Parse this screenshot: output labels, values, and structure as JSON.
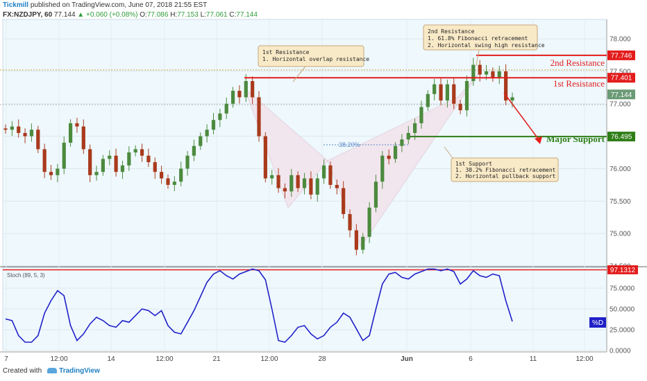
{
  "header": {
    "publisher": "Tickmill",
    "published_text": "published on TradingView.com, June 07, 2018 21:55 EST",
    "symbol": "FX:NZDJPY, 60",
    "last": "77.144",
    "change": "+0.060 (+0.08%)",
    "ohlc": [
      {
        "label": "O:",
        "value": "77.086"
      },
      {
        "label": "H:",
        "value": "77.153"
      },
      {
        "label": "L:",
        "value": "77.061"
      },
      {
        "label": "C:",
        "value": "77.144"
      }
    ]
  },
  "footer": {
    "created_with": "Created with",
    "brand": "TradingView"
  },
  "colors": {
    "resistance": "#e31c1c",
    "support": "#2e7d17",
    "stoch": "#2020c8",
    "current": "#6b9a76",
    "pane_bg": "#eef8fd",
    "up": "#4c8a3e",
    "down": "#a93a1c",
    "pattern": "#f2e6ee"
  },
  "chart_data": [
    {
      "type": "candlestick",
      "ylim": [
        74.5,
        78.3
      ],
      "yticks": [
        "78.000",
        "77.500",
        "77.000",
        "76.500",
        "76.000",
        "75.500",
        "75.000",
        "74.500"
      ],
      "ytick_values": [
        78.0,
        77.5,
        77.0,
        76.5,
        76.0,
        75.5,
        75.0,
        74.5
      ],
      "xticks": [
        "7",
        "12:00",
        "14",
        "12:00",
        "21",
        "12:00",
        "28",
        "Jun",
        "6",
        "11",
        "12:00"
      ],
      "closes": [
        76.6,
        76.65,
        76.55,
        76.5,
        76.6,
        76.3,
        75.95,
        75.9,
        76.0,
        76.4,
        76.7,
        76.65,
        76.3,
        75.9,
        75.95,
        76.15,
        76.2,
        75.95,
        76.05,
        76.25,
        76.3,
        76.2,
        76.1,
        75.95,
        75.85,
        75.75,
        75.8,
        76.0,
        76.2,
        76.35,
        76.5,
        76.6,
        76.75,
        76.85,
        77.0,
        77.2,
        77.1,
        77.35,
        77.1,
        76.5,
        75.85,
        75.9,
        75.7,
        75.65,
        75.9,
        75.7,
        75.85,
        75.6,
        75.85,
        76.05,
        75.75,
        75.7,
        75.3,
        75.05,
        74.75,
        74.95,
        75.4,
        75.8,
        76.2,
        76.15,
        76.35,
        76.45,
        76.55,
        76.7,
        76.95,
        77.15,
        77.3,
        77.05,
        77.3,
        77.0,
        76.9,
        77.35,
        77.6,
        77.45,
        77.5,
        77.4,
        77.5,
        77.05,
        77.1
      ],
      "levels": [
        {
          "label": "2nd Resistance",
          "value": "77.746",
          "y": 77.746
        },
        {
          "label": "1st Resistance",
          "value": "77.401",
          "y": 77.401
        },
        {
          "label": "Major Support",
          "value": "76.495",
          "y": 76.495
        }
      ],
      "current": {
        "value": "77.144",
        "y": 77.144
      },
      "fib_label": "38.20%",
      "annotations": [
        {
          "title": "1st Resistance",
          "lines": [
            "1. Horizontal overlap resistance"
          ]
        },
        {
          "title": "2nd Resistance",
          "lines": [
            "1. 61.8% Fibonacci retracement",
            "2. Horizontal swing high resistance"
          ]
        },
        {
          "title": "1st Support",
          "lines": [
            "1. 38.2% Fibonacci retracement",
            "2. Horizontal pullback support"
          ]
        }
      ]
    },
    {
      "type": "line",
      "title": "Stoch (89, 5, 3)",
      "series_label": "%D",
      "ylim": [
        0,
        100
      ],
      "yticks": [
        "75.0000",
        "50.0000",
        "25.0000",
        "0.0000"
      ],
      "ytick_values": [
        75,
        50,
        25,
        0
      ],
      "level": {
        "value": "97.1312",
        "y": 97.1312
      },
      "values": [
        38,
        36,
        18,
        10,
        10,
        18,
        45,
        60,
        72,
        66,
        30,
        12,
        20,
        32,
        40,
        36,
        30,
        28,
        36,
        34,
        42,
        50,
        48,
        42,
        48,
        30,
        22,
        20,
        34,
        48,
        65,
        82,
        92,
        96,
        90,
        86,
        92,
        95,
        98,
        96,
        85,
        50,
        12,
        10,
        18,
        28,
        30,
        20,
        14,
        18,
        28,
        34,
        45,
        40,
        26,
        12,
        18,
        50,
        80,
        92,
        94,
        88,
        86,
        92,
        95,
        98,
        98,
        96,
        98,
        95,
        80,
        86,
        96,
        90,
        88,
        92,
        90,
        60,
        35
      ]
    }
  ]
}
